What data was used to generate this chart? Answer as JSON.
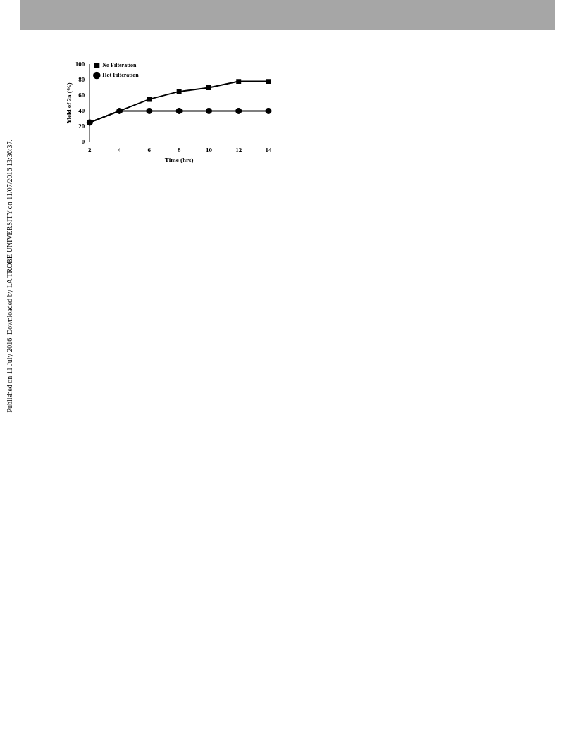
{
  "chart_data": {
    "type": "line",
    "xlabel": "Time (hrs)",
    "ylabel": "Yield of 3a (%)",
    "categories": [
      "2",
      "4",
      "6",
      "8",
      "10",
      "12",
      "14"
    ],
    "series": [
      {
        "name": "No Filteration",
        "color": "#000000",
        "marker": "square",
        "values": [
          25,
          40,
          55,
          65,
          70,
          78,
          78
        ]
      },
      {
        "name": "Hot Filteration",
        "color": "#000000",
        "marker": "circle",
        "values": [
          25,
          40,
          40,
          40,
          40,
          40,
          40
        ]
      }
    ],
    "ylim": [
      0,
      100
    ],
    "yticks": [
      0,
      20,
      40,
      60,
      80,
      100
    ],
    "grid": false,
    "legend": "top left",
    "line_style": "solid",
    "annotations": [
      "Published on 11 July 2016. Downloaded by LA TROBE UNIVERSITY on 11/07/2016 13:36:37."
    ]
  }
}
